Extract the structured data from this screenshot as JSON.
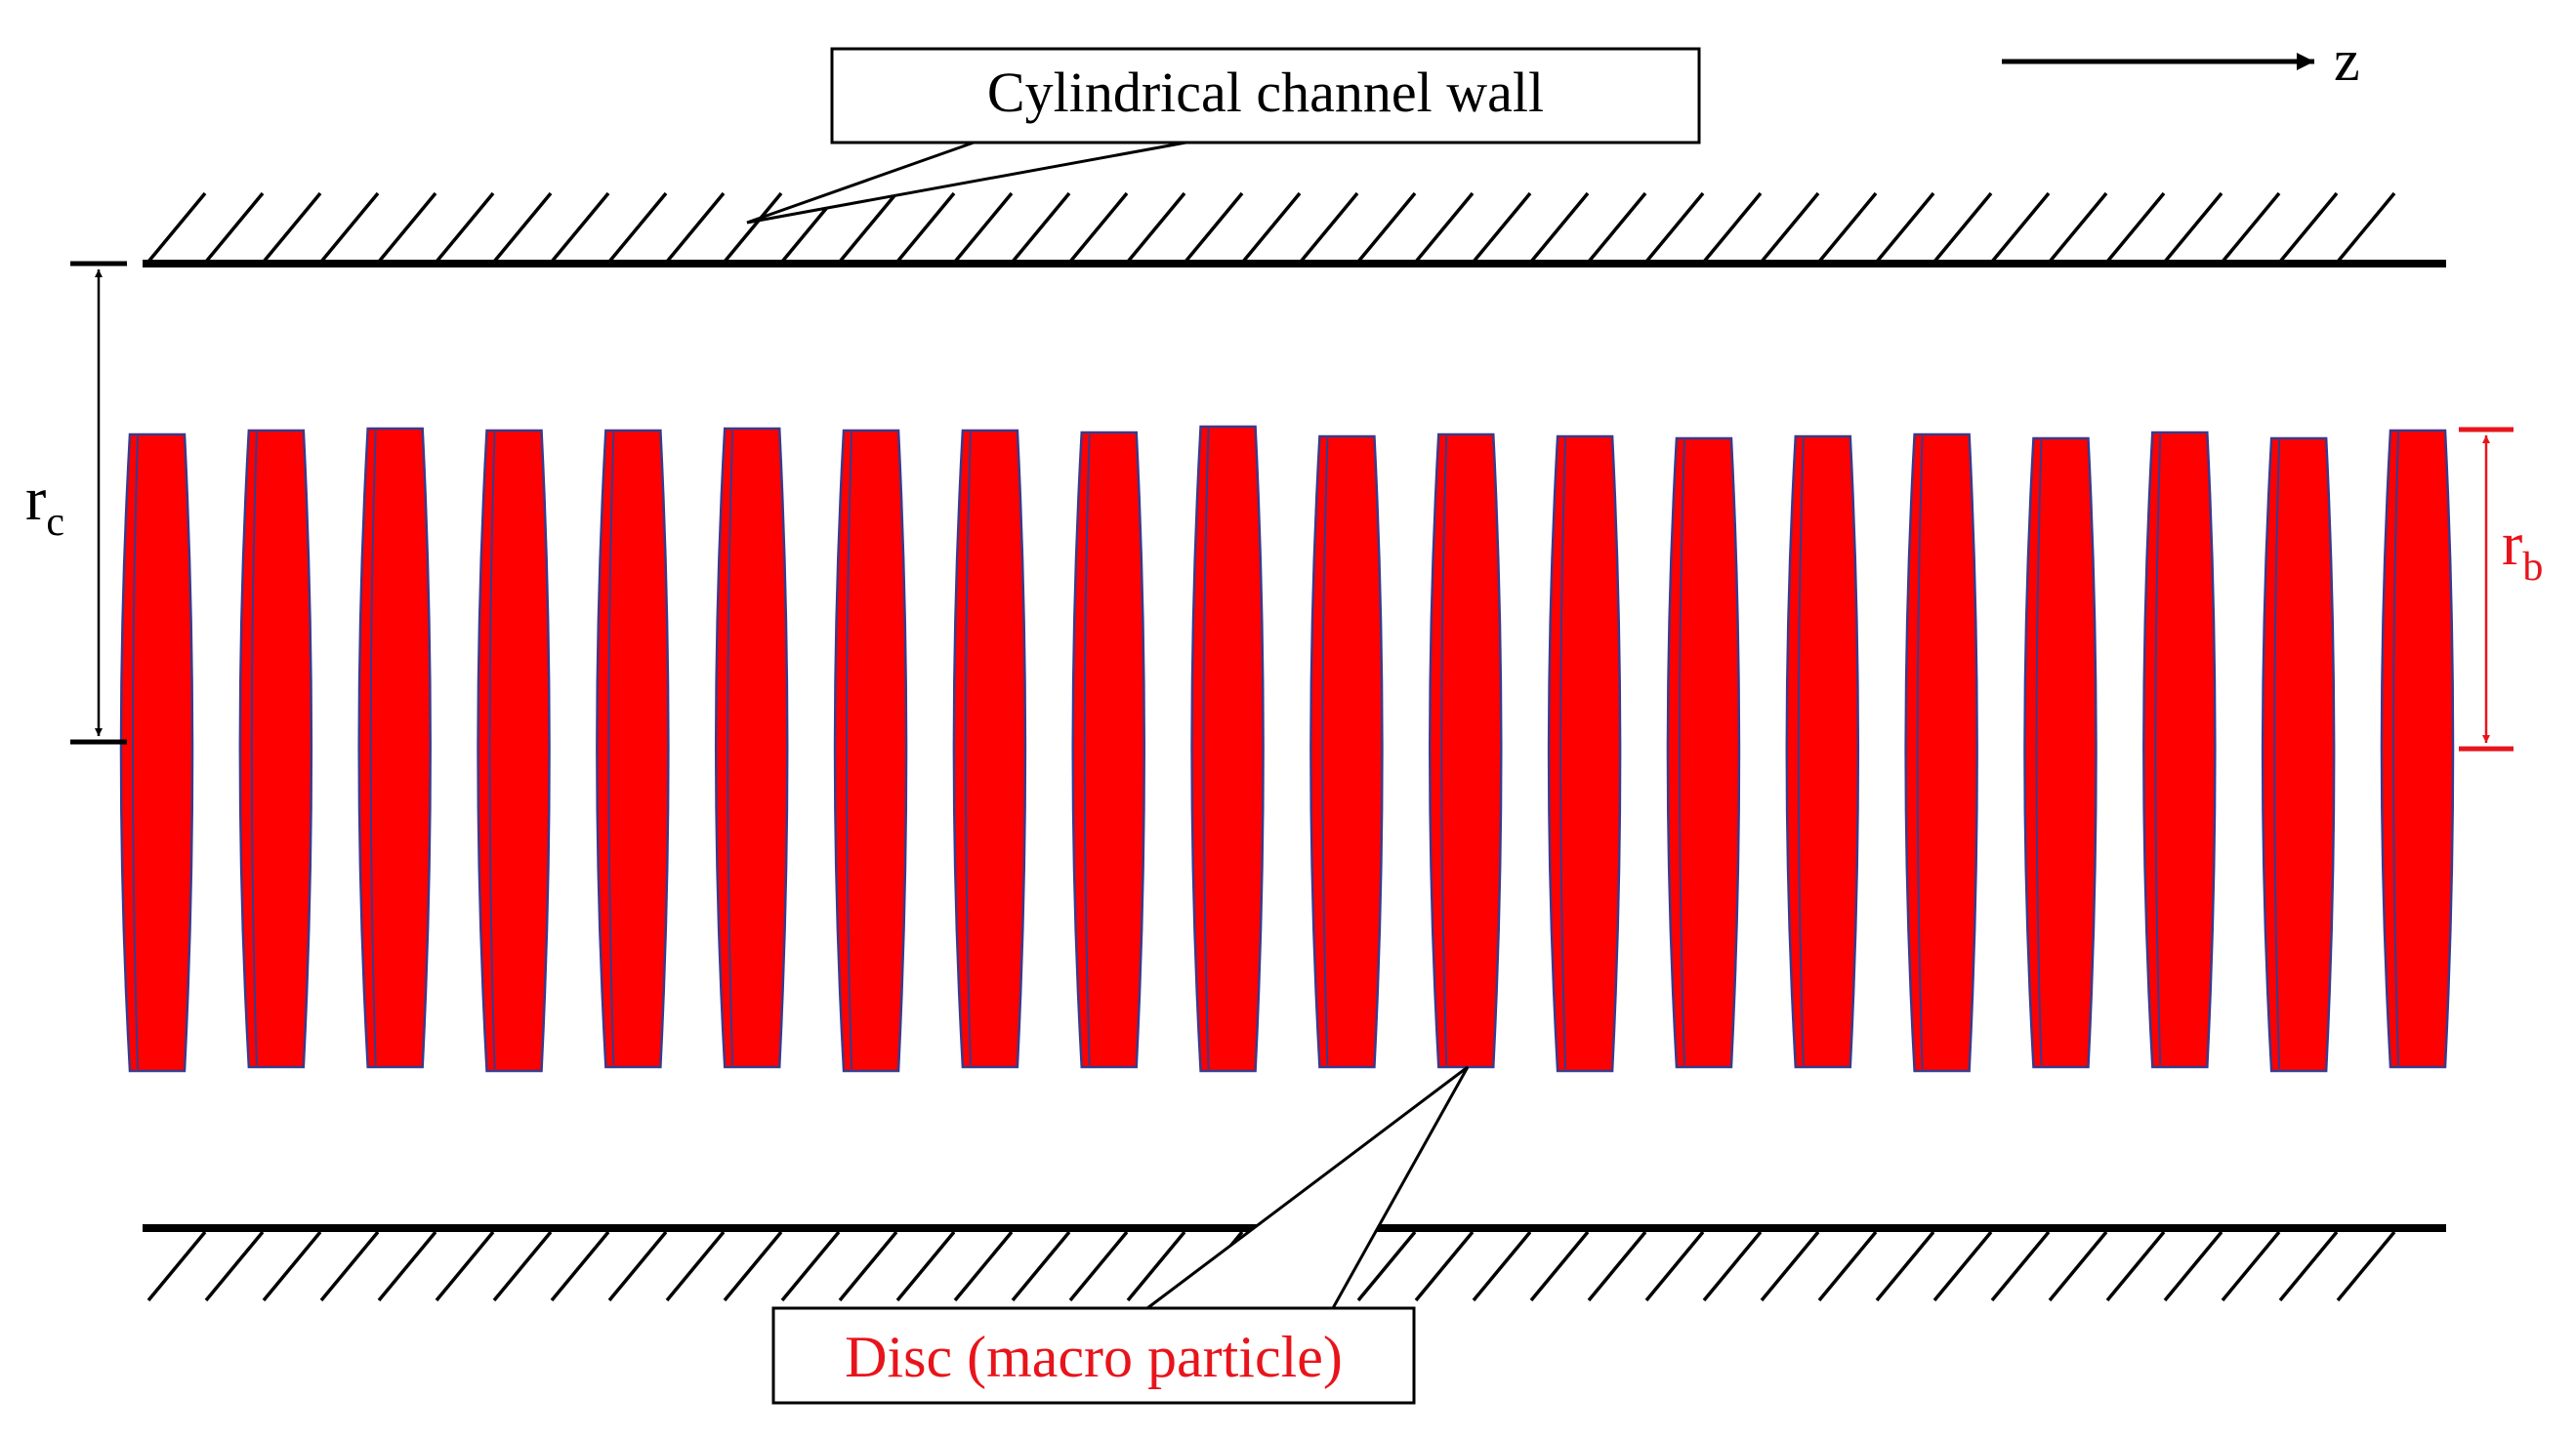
{
  "labels": {
    "axis_direction": "z",
    "wall_callout": "Cylindrical channel wall",
    "disc_callout": "Disc (macro particle)",
    "channel_radius_symbol": "r",
    "channel_radius_subscript": "c",
    "beam_radius_symbol": "r",
    "beam_radius_subscript": "b"
  },
  "discs": {
    "count": 20
  },
  "colors": {
    "disc_fill": "#ff0000",
    "disc_outline": "#3a3a8c",
    "wall": "#000000",
    "beam_radius_marker": "#e8141b",
    "disc_callout_text": "#e8141b",
    "text": "#000000"
  },
  "icons": {
    "axis_arrow": "arrow-right-icon"
  }
}
